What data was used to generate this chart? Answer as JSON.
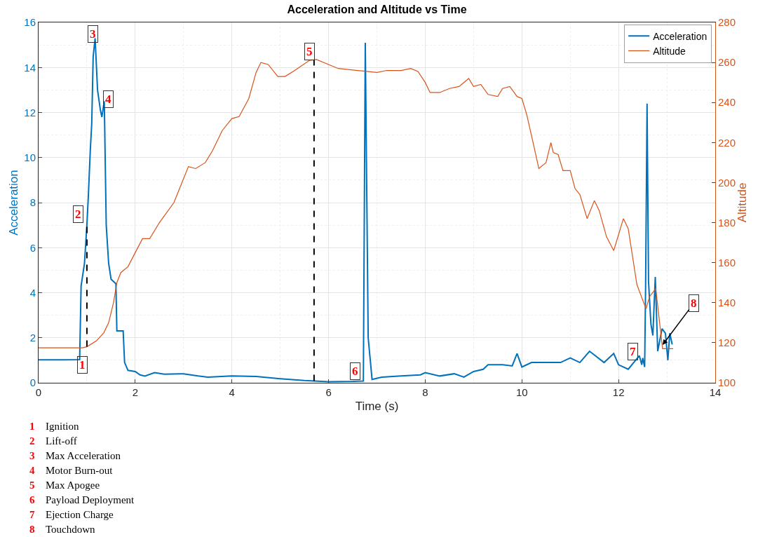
{
  "chart_data": {
    "type": "line",
    "title": "Acceleration and Altitude vs Time",
    "xlabel": "Time (s)",
    "ylabel": "Acceleration",
    "y2label": "Altitude",
    "xlim": [
      0,
      14
    ],
    "xticks": [
      0,
      2,
      4,
      6,
      8,
      10,
      12,
      14
    ],
    "ylim": [
      0,
      16
    ],
    "yticks": [
      0,
      2,
      4,
      6,
      8,
      10,
      12,
      14,
      16
    ],
    "y2lim": [
      100,
      280
    ],
    "y2ticks": [
      100,
      120,
      140,
      160,
      180,
      200,
      220,
      240,
      260,
      280
    ],
    "grid": true,
    "legend": "top right",
    "line_style": "solid",
    "series": [
      {
        "name": "Acceleration",
        "color": "#0072bd",
        "x": [
          0,
          0.5,
          0.85,
          0.88,
          0.95,
          1.0,
          1.03,
          1.07,
          1.1,
          1.13,
          1.17,
          1.22,
          1.28,
          1.31,
          1.36,
          1.4,
          1.45,
          1.5,
          1.6,
          1.62,
          1.75,
          1.78,
          1.85,
          2.0,
          2.1,
          2.2,
          2.4,
          2.6,
          3.0,
          3.3,
          3.5,
          4.0,
          4.5,
          5.0,
          5.5,
          6.0,
          6.5,
          6.72,
          6.76,
          6.82,
          6.9,
          7.1,
          7.5,
          7.9,
          8.0,
          8.3,
          8.6,
          8.8,
          9.0,
          9.2,
          9.3,
          9.6,
          9.8,
          9.9,
          10.0,
          10.2,
          10.5,
          10.8,
          11.0,
          11.2,
          11.4,
          11.7,
          11.9,
          12.0,
          12.2,
          12.43,
          12.48,
          12.5,
          12.54,
          12.56,
          12.59,
          12.62,
          12.67,
          12.71,
          12.76,
          12.81,
          12.9,
          12.97,
          13.02,
          13.06,
          13.11
        ],
        "values": [
          1.02,
          1.02,
          1.03,
          4.3,
          5.3,
          7,
          8.3,
          10.3,
          11.5,
          14.5,
          15.3,
          13,
          12.1,
          11.8,
          12.5,
          7,
          5.3,
          4.6,
          4.4,
          2.3,
          2.3,
          0.9,
          0.55,
          0.5,
          0.35,
          0.3,
          0.45,
          0.38,
          0.4,
          0.3,
          0.25,
          0.3,
          0.28,
          0.18,
          0.1,
          0.05,
          0.06,
          0.08,
          15.1,
          2,
          0.15,
          0.25,
          0.3,
          0.35,
          0.45,
          0.3,
          0.4,
          0.25,
          0.5,
          0.6,
          0.8,
          0.8,
          0.75,
          1.3,
          0.7,
          0.9,
          0.9,
          0.9,
          1.1,
          0.9,
          1.4,
          0.9,
          1.3,
          0.8,
          0.6,
          1.2,
          0.8,
          1.1,
          0.7,
          4.3,
          12.4,
          4.5,
          2.6,
          2.1,
          4.7,
          1.4,
          2.4,
          2.2,
          1.0,
          2.2,
          1.7
        ]
      },
      {
        "name": "Altitude",
        "color": "#d95319",
        "axis": "y2",
        "x": [
          0,
          0.9,
          1.0,
          1.2,
          1.35,
          1.45,
          1.55,
          1.62,
          1.7,
          1.85,
          2.0,
          2.15,
          2.3,
          2.5,
          2.8,
          3.0,
          3.1,
          3.25,
          3.45,
          3.6,
          3.8,
          4.0,
          4.15,
          4.35,
          4.5,
          4.6,
          4.75,
          4.95,
          5.1,
          5.3,
          5.6,
          5.75,
          6.0,
          6.2,
          6.8,
          7.0,
          7.2,
          7.5,
          7.7,
          7.85,
          8.0,
          8.1,
          8.3,
          8.5,
          8.7,
          8.9,
          9.0,
          9.15,
          9.3,
          9.5,
          9.6,
          9.75,
          9.9,
          10.0,
          10.1,
          10.25,
          10.35,
          10.5,
          10.6,
          10.65,
          10.75,
          10.85,
          11.0,
          11.1,
          11.2,
          11.35,
          11.5,
          11.6,
          11.75,
          11.9,
          12.1,
          12.2,
          12.38,
          12.52,
          12.57,
          12.64,
          12.77,
          12.85,
          12.91,
          13.13
        ],
        "values": [
          117.5,
          117.5,
          118,
          121,
          125,
          130,
          140,
          150,
          155,
          158,
          165,
          172,
          172,
          180,
          190,
          202,
          208,
          207,
          210,
          216,
          226,
          232,
          233,
          242,
          255,
          260,
          259,
          253,
          253,
          256,
          261,
          261.5,
          259,
          257,
          255.5,
          255,
          256,
          256,
          257,
          255.5,
          250,
          245,
          245,
          247,
          248,
          252,
          248,
          249,
          244,
          243,
          247,
          248,
          243,
          242,
          234,
          218,
          207,
          210,
          220,
          215,
          214,
          206,
          206,
          197,
          194,
          182,
          191,
          186,
          173,
          166,
          182,
          177,
          149,
          140,
          137,
          143,
          147,
          130,
          117,
          117
        ]
      }
    ],
    "ref_lines": [
      {
        "axis": "x",
        "value": 1.0,
        "color": "#000000",
        "line_style": "dashed"
      },
      {
        "axis": "x",
        "value": 5.7,
        "color": "#000000",
        "line_style": "dashed"
      }
    ],
    "annotations": [
      {
        "text": "1",
        "x": 0.91,
        "y": 0.78
      },
      {
        "text": "2",
        "x": 0.82,
        "y": 7.5
      },
      {
        "text": "3",
        "x": 1.12,
        "y": 15.5
      },
      {
        "text": "4",
        "x": 1.45,
        "y": 12.6
      },
      {
        "text": "5",
        "x": 5.6,
        "y": 14.7
      },
      {
        "text": "6",
        "x": 6.55,
        "y": 0.5
      },
      {
        "text": "7",
        "x": 12.3,
        "y": 1.37
      },
      {
        "text": "8",
        "x": 12.91,
        "y": 1.68
      },
      "1 Ignition",
      "2 Lift-off",
      "3 Max Acceleration",
      "4 Motor Burn-out",
      "5 Max Apogee",
      "6 Payload Deployment",
      "7 Ejection Charge",
      "8 Touchdown"
    ]
  }
}
